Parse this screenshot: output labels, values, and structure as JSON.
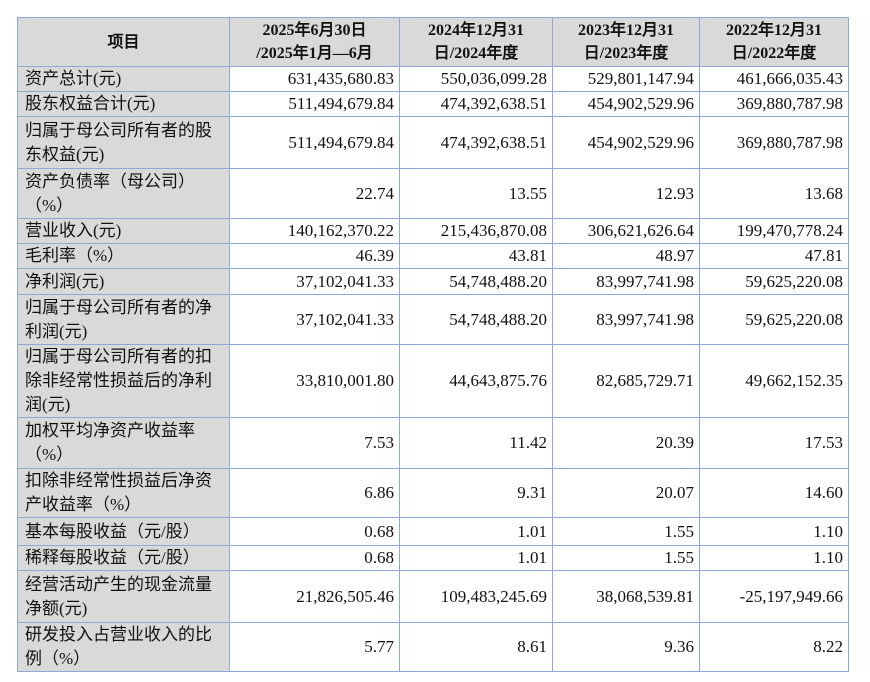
{
  "table": {
    "headers": [
      "项目",
      "2025年6月30日 /2025年1月—6月",
      "2024年12月31 日/2024年度",
      "2023年12月31 日/2023年度",
      "2022年12月31 日/2022年度"
    ],
    "header_lines": [
      [
        "项目"
      ],
      [
        "2025年6月30日",
        "/2025年1月—6月"
      ],
      [
        "2024年12月31",
        "日/2024年度"
      ],
      [
        "2023年12月31",
        "日/2023年度"
      ],
      [
        "2022年12月31",
        "日/2022年度"
      ]
    ],
    "rows": [
      {
        "label": "资产总计(元)",
        "values": [
          "631,435,680.83",
          "550,036,099.28",
          "529,801,147.94",
          "461,666,035.43"
        ]
      },
      {
        "label": "股东权益合计(元)",
        "values": [
          "511,494,679.84",
          "474,392,638.51",
          "454,902,529.96",
          "369,880,787.98"
        ]
      },
      {
        "label": "归属于母公司所有者的股东权益(元)",
        "values": [
          "511,494,679.84",
          "474,392,638.51",
          "454,902,529.96",
          "369,880,787.98"
        ]
      },
      {
        "label": "资产负债率（母公司）（%）",
        "values": [
          "22.74",
          "13.55",
          "12.93",
          "13.68"
        ]
      },
      {
        "label": "营业收入(元)",
        "values": [
          "140,162,370.22",
          "215,436,870.08",
          "306,621,626.64",
          "199,470,778.24"
        ]
      },
      {
        "label": "毛利率（%）",
        "values": [
          "46.39",
          "43.81",
          "48.97",
          "47.81"
        ]
      },
      {
        "label": "净利润(元)",
        "values": [
          "37,102,041.33",
          "54,748,488.20",
          "83,997,741.98",
          "59,625,220.08"
        ]
      },
      {
        "label": "归属于母公司所有者的净利润(元)",
        "values": [
          "37,102,041.33",
          "54,748,488.20",
          "83,997,741.98",
          "59,625,220.08"
        ]
      },
      {
        "label": "归属于母公司所有者的扣除非经常性损益后的净利润(元)",
        "values": [
          "33,810,001.80",
          "44,643,875.76",
          "82,685,729.71",
          "49,662,152.35"
        ]
      },
      {
        "label": "加权平均净资产收益率（%）",
        "values": [
          "7.53",
          "11.42",
          "20.39",
          "17.53"
        ]
      },
      {
        "label": "扣除非经常性损益后净资产收益率（%）",
        "values": [
          "6.86",
          "9.31",
          "20.07",
          "14.60"
        ]
      },
      {
        "label": "基本每股收益（元/股）",
        "values": [
          "0.68",
          "1.01",
          "1.55",
          "1.10"
        ]
      },
      {
        "label": "稀释每股收益（元/股）",
        "values": [
          "0.68",
          "1.01",
          "1.55",
          "1.10"
        ]
      },
      {
        "label": "经营活动产生的现金流量净额(元)",
        "values": [
          "21,826,505.46",
          "109,483,245.69",
          "38,068,539.81",
          "-25,197,949.66"
        ]
      },
      {
        "label": "研发投入占营业收入的比例（%）",
        "values": [
          "5.77",
          "8.61",
          "9.36",
          "8.22"
        ]
      }
    ]
  }
}
